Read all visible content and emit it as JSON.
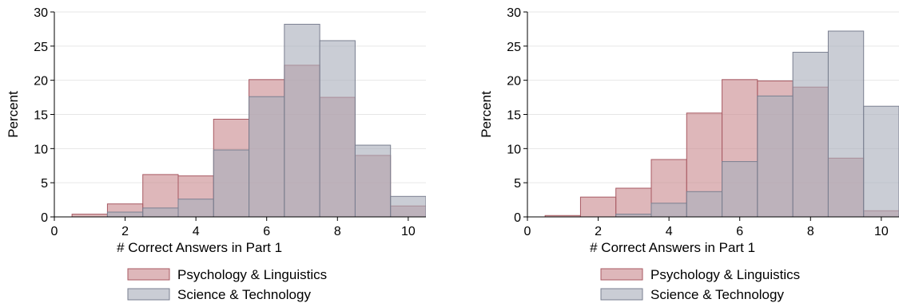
{
  "chart_data": [
    {
      "type": "histogram",
      "xlabel": "# Correct Answers in Part 1",
      "ylabel": "Percent",
      "xlim": [
        0,
        10.5
      ],
      "ylim": [
        0,
        30
      ],
      "xticks": [
        "0",
        "2",
        "4",
        "6",
        "8",
        "10"
      ],
      "yticks": [
        "0",
        "5",
        "10",
        "15",
        "20",
        "25",
        "30"
      ],
      "bins": [
        1,
        2,
        3,
        4,
        5,
        6,
        7,
        8,
        9,
        10
      ],
      "bin_width": 1,
      "grid": true,
      "legend_position": "bottom",
      "series": [
        {
          "name": "Psychology & Linguistics",
          "color": "#c98a90",
          "edge": "#a85a63",
          "values": [
            0.4,
            1.9,
            6.2,
            6.0,
            14.3,
            20.1,
            22.2,
            17.5,
            9.0,
            1.6
          ]
        },
        {
          "name": "Science & Technology",
          "color": "#a9aebc",
          "edge": "#7a7f90",
          "values": [
            0.0,
            0.7,
            1.3,
            2.6,
            9.8,
            17.6,
            28.2,
            25.8,
            10.5,
            3.0
          ]
        }
      ]
    },
    {
      "type": "histogram",
      "xlabel": "# Correct Answers in Part 1",
      "ylabel": "Percent",
      "xlim": [
        0,
        10.5
      ],
      "ylim": [
        0,
        30
      ],
      "xticks": [
        "0",
        "2",
        "4",
        "6",
        "8",
        "10"
      ],
      "yticks": [
        "0",
        "5",
        "10",
        "15",
        "20",
        "25",
        "30"
      ],
      "bins": [
        1,
        2,
        3,
        4,
        5,
        6,
        7,
        8,
        9,
        10
      ],
      "bin_width": 1,
      "grid": true,
      "legend_position": "bottom",
      "series": [
        {
          "name": "Psychology & Linguistics",
          "color": "#c98a90",
          "edge": "#a85a63",
          "values": [
            0.2,
            2.9,
            4.2,
            8.4,
            15.2,
            20.1,
            19.9,
            19.0,
            8.6,
            0.9
          ]
        },
        {
          "name": "Science & Technology",
          "color": "#a9aebc",
          "edge": "#7a7f90",
          "values": [
            0.0,
            0.0,
            0.4,
            2.0,
            3.7,
            8.1,
            17.7,
            24.1,
            27.2,
            16.2
          ]
        }
      ]
    }
  ]
}
